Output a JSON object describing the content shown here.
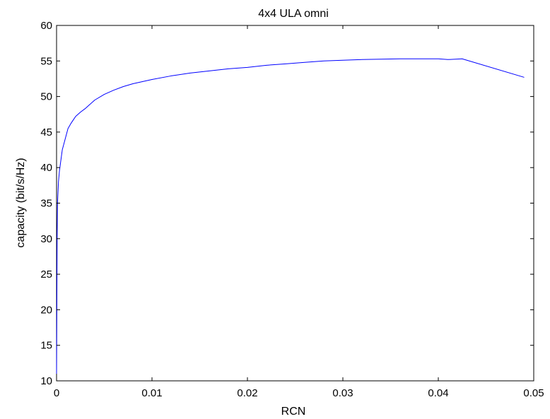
{
  "chart_data": {
    "type": "line",
    "title": "4x4 ULA omni",
    "xlabel": "RCN",
    "ylabel": "capacity (bit/s/Hz)",
    "xlim": [
      0,
      0.05
    ],
    "ylim": [
      10,
      60
    ],
    "xticks": [
      0,
      0.01,
      0.02,
      0.03,
      0.04,
      0.05
    ],
    "xtick_labels": [
      "0",
      "0.01",
      "0.02",
      "0.03",
      "0.04",
      "0.05"
    ],
    "yticks": [
      10,
      15,
      20,
      25,
      30,
      35,
      40,
      45,
      50,
      55,
      60
    ],
    "ytick_labels": [
      "10",
      "15",
      "20",
      "25",
      "30",
      "35",
      "40",
      "45",
      "50",
      "55",
      "60"
    ],
    "grid": false,
    "series_color": "#0000ff",
    "series": [
      {
        "x": [
          0,
          3e-05,
          6e-05,
          0.0001,
          0.00015,
          0.0002,
          0.0003,
          0.0004,
          0.0005,
          0.0006,
          0.0008,
          0.001,
          0.0012,
          0.0015,
          0.0018,
          0.002,
          0.0025,
          0.003,
          0.0035,
          0.004,
          0.005,
          0.006,
          0.007,
          0.008,
          0.009,
          0.01,
          0.012,
          0.014,
          0.016,
          0.018,
          0.02,
          0.022,
          0.024,
          0.026,
          0.028,
          0.03,
          0.032,
          0.034,
          0.036,
          0.038,
          0.04,
          0.041,
          0.0425,
          0.049
        ],
        "y": [
          11,
          20,
          30,
          35,
          36.5,
          38,
          39.5,
          40.5,
          41.5,
          42.5,
          43.5,
          44.5,
          45.5,
          46.2,
          46.8,
          47.2,
          47.8,
          48.3,
          48.9,
          49.5,
          50.3,
          50.9,
          51.4,
          51.8,
          52.1,
          52.4,
          52.9,
          53.3,
          53.6,
          53.9,
          54.1,
          54.4,
          54.6,
          54.8,
          55.0,
          55.1,
          55.2,
          55.25,
          55.3,
          55.3,
          55.3,
          55.2,
          55.3,
          52.7
        ]
      }
    ]
  }
}
